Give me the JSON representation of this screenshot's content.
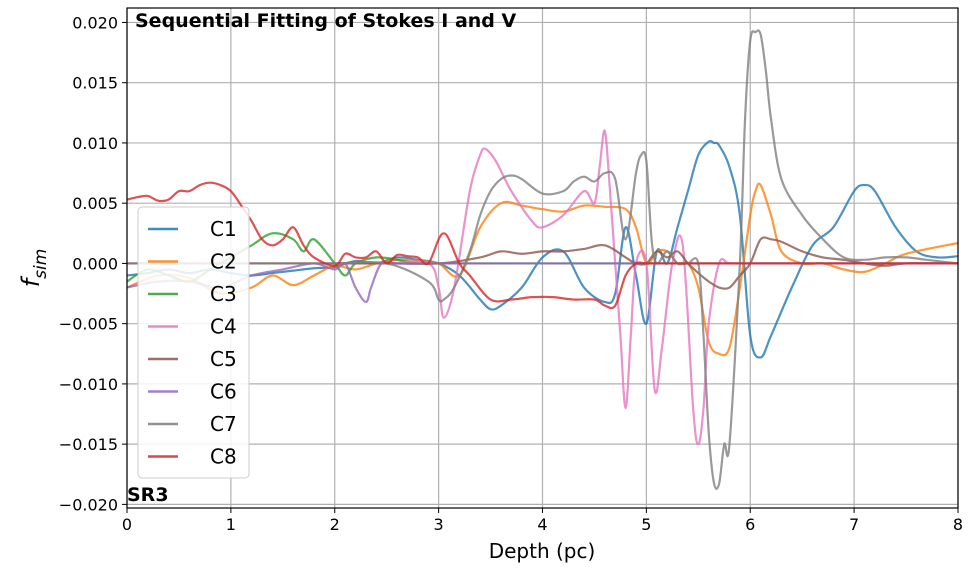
{
  "chart_data": {
    "type": "line",
    "title": "Sequential Fitting of Stokes I and V",
    "corner_label": "SR3",
    "xlabel": "Depth (pc)",
    "ylabel_base": "f",
    "ylabel_sub": "sim",
    "xlim": [
      0,
      8
    ],
    "ylim": [
      -0.0203,
      0.0212
    ],
    "xticks": [
      0,
      1,
      2,
      3,
      4,
      5,
      6,
      7,
      8
    ],
    "xtick_labels": [
      "0",
      "1",
      "2",
      "3",
      "4",
      "5",
      "6",
      "7",
      "8"
    ],
    "yticks": [
      -0.02,
      -0.015,
      -0.01,
      -0.005,
      0.0,
      0.005,
      0.01,
      0.015,
      0.02
    ],
    "ytick_labels": [
      "−0.020",
      "−0.015",
      "−0.010",
      "−0.005",
      "0.000",
      "0.005",
      "0.010",
      "0.015",
      "0.020"
    ],
    "grid": true,
    "legend_position": "left",
    "series": [
      {
        "name": "C1",
        "color": "#1f77b4",
        "x": [
          0,
          0.2,
          0.4,
          0.6,
          0.8,
          1.0,
          1.2,
          1.4,
          1.6,
          1.8,
          2.0,
          2.2,
          2.4,
          2.6,
          2.8,
          3.0,
          3.2,
          3.4,
          3.5,
          3.6,
          3.8,
          4.0,
          4.2,
          4.4,
          4.6,
          4.7,
          4.8,
          4.9,
          5.0,
          5.1,
          5.2,
          5.3,
          5.4,
          5.5,
          5.6,
          5.65,
          5.7,
          5.8,
          5.9,
          6.0,
          6.1,
          6.2,
          6.4,
          6.6,
          6.8,
          7.0,
          7.1,
          7.2,
          7.4,
          7.6,
          7.8,
          8.0
        ],
        "y": [
          -0.001,
          -0.0008,
          -0.0005,
          -0.0008,
          -0.0005,
          -0.0008,
          -0.001,
          -0.0008,
          -0.0006,
          -0.0004,
          -0.0003,
          0.0002,
          0.0,
          0.0005,
          0.0003,
          0.0,
          -0.001,
          -0.003,
          -0.0038,
          -0.0035,
          -0.002,
          0.0005,
          0.001,
          -0.002,
          -0.0032,
          -0.0025,
          0.003,
          -0.001,
          -0.005,
          0.001,
          0.0,
          0.003,
          0.006,
          0.009,
          0.0101,
          0.01,
          0.0098,
          0.008,
          0.004,
          -0.006,
          -0.0078,
          -0.006,
          -0.002,
          0.0015,
          0.003,
          0.006,
          0.0065,
          0.006,
          0.003,
          0.001,
          0.0005,
          0.0006
        ]
      },
      {
        "name": "C2",
        "color": "#ff7f0e",
        "x": [
          0,
          0.3,
          0.6,
          0.9,
          1.2,
          1.4,
          1.6,
          1.8,
          2.0,
          2.2,
          2.4,
          2.6,
          2.8,
          3.0,
          3.2,
          3.4,
          3.6,
          3.8,
          4.0,
          4.2,
          4.4,
          4.6,
          4.8,
          4.9,
          5.0,
          5.1,
          5.2,
          5.3,
          5.4,
          5.5,
          5.6,
          5.7,
          5.8,
          5.9,
          6.0,
          6.05,
          6.1,
          6.2,
          6.3,
          6.5,
          6.7,
          6.9,
          7.1,
          7.3,
          7.5,
          8.0
        ],
        "y": [
          -0.002,
          -0.001,
          -0.0012,
          -0.0025,
          -0.002,
          -0.001,
          -0.0018,
          -0.001,
          -0.0002,
          -0.0005,
          0.0,
          0.0003,
          0.0002,
          0.0,
          -0.001,
          0.003,
          0.005,
          0.0048,
          0.0045,
          0.0043,
          0.0048,
          0.0047,
          0.0045,
          0.003,
          0.0,
          0.001,
          0.001,
          0.0,
          0.0,
          -0.002,
          -0.0065,
          -0.0075,
          -0.007,
          -0.002,
          0.004,
          0.006,
          0.0065,
          0.004,
          0.001,
          0.0,
          0.0,
          -0.0005,
          -0.0007,
          0.0,
          0.0008,
          0.0017
        ]
      },
      {
        "name": "C3",
        "color": "#2ca02c",
        "x": [
          0,
          0.2,
          0.4,
          0.6,
          0.8,
          1.0,
          1.2,
          1.4,
          1.6,
          1.7,
          1.8,
          2.0,
          2.1,
          2.2,
          2.4,
          2.6,
          2.8,
          3.0,
          3.5,
          4.0,
          5.0,
          6.0,
          7.0,
          8.0
        ],
        "y": [
          -0.0015,
          -0.0005,
          -0.001,
          -0.0015,
          -0.0005,
          0.0005,
          0.0015,
          0.0025,
          0.002,
          0.001,
          0.002,
          0.0,
          -0.001,
          0.0,
          0.0005,
          0.0003,
          0.0,
          0.0,
          0.0,
          0.0,
          0.0,
          0.0,
          0.0,
          0.0
        ]
      },
      {
        "name": "C4",
        "color": "#e377c2",
        "x": [
          0,
          0.5,
          1.0,
          1.5,
          2.0,
          2.5,
          2.9,
          3.0,
          3.05,
          3.15,
          3.3,
          3.4,
          3.45,
          3.55,
          3.7,
          3.9,
          4.0,
          4.2,
          4.4,
          4.5,
          4.55,
          4.6,
          4.65,
          4.7,
          4.75,
          4.8,
          4.85,
          4.9,
          5.0,
          5.08,
          5.15,
          5.25,
          5.35,
          5.45,
          5.5,
          5.55,
          5.6,
          5.7,
          5.8,
          6.0,
          6.5,
          7.0,
          8.0
        ],
        "y": [
          0.0,
          0.0,
          0.0,
          0.0,
          0.0,
          0.0,
          0.0,
          -0.002,
          -0.0045,
          -0.002,
          0.006,
          0.009,
          0.0095,
          0.0085,
          0.006,
          0.0035,
          0.003,
          0.004,
          0.006,
          0.005,
          0.008,
          0.011,
          0.006,
          0.0,
          -0.006,
          -0.012,
          -0.006,
          0.0,
          0.0,
          -0.0105,
          -0.007,
          0.0,
          0.0015,
          -0.012,
          -0.015,
          -0.012,
          -0.005,
          0.0,
          0.0,
          0.0,
          0.0,
          0.0,
          0.0
        ]
      },
      {
        "name": "C5",
        "color": "#8c564b",
        "x": [
          0,
          0.5,
          1.0,
          1.5,
          2.0,
          2.5,
          3.0,
          3.4,
          3.6,
          3.8,
          4.0,
          4.2,
          4.4,
          4.6,
          4.8,
          4.9,
          5.0,
          5.1,
          5.2,
          5.3,
          5.4,
          5.5,
          5.6,
          5.7,
          5.8,
          5.9,
          6.0,
          6.1,
          6.2,
          6.3,
          6.5,
          6.7,
          6.9,
          7.1,
          7.3,
          7.5,
          8.0
        ],
        "y": [
          0.0,
          0.0,
          0.0,
          0.0,
          0.0,
          0.0,
          0.0,
          0.0005,
          0.001,
          0.0008,
          0.001,
          0.001,
          0.0012,
          0.0015,
          0.0005,
          0.0,
          0.0,
          0.001,
          0.0005,
          0.001,
          0.0,
          -0.0008,
          -0.0015,
          -0.002,
          -0.002,
          -0.001,
          0.0,
          0.002,
          0.002,
          0.0018,
          0.001,
          0.0005,
          0.0003,
          0.0,
          -0.0002,
          0.0,
          0.0
        ]
      },
      {
        "name": "C6",
        "color": "#9467bd",
        "x": [
          0,
          0.3,
          0.6,
          0.9,
          1.2,
          1.5,
          1.8,
          2.0,
          2.1,
          2.2,
          2.3,
          2.35,
          2.45,
          2.6,
          3.0,
          4.0,
          5.0,
          6.0,
          7.0,
          8.0
        ],
        "y": [
          -0.002,
          -0.0015,
          -0.0015,
          -0.002,
          -0.001,
          -0.0005,
          0.0,
          -0.0005,
          0.0,
          -0.002,
          -0.0032,
          -0.002,
          0.0,
          0.0,
          0.0,
          0.0,
          0.0,
          0.0,
          0.0,
          0.0
        ]
      },
      {
        "name": "C7",
        "color": "#7f7f7f",
        "x": [
          0,
          0.5,
          1.0,
          1.5,
          2.0,
          2.5,
          2.9,
          3.0,
          3.05,
          3.15,
          3.3,
          3.4,
          3.5,
          3.6,
          3.7,
          3.8,
          4.0,
          4.2,
          4.3,
          4.4,
          4.5,
          4.6,
          4.7,
          4.8,
          4.9,
          4.95,
          5.0,
          5.05,
          5.1,
          5.2,
          5.3,
          5.4,
          5.5,
          5.55,
          5.6,
          5.65,
          5.7,
          5.75,
          5.8,
          5.9,
          5.95,
          6.0,
          6.05,
          6.1,
          6.15,
          6.2,
          6.3,
          6.5,
          6.7,
          6.9,
          7.1,
          7.3,
          7.5,
          7.7,
          8.0
        ],
        "y": [
          0.0,
          0.0,
          0.0,
          0.0,
          0.0,
          0.0,
          -0.0015,
          -0.003,
          -0.003,
          -0.002,
          0.001,
          0.004,
          0.006,
          0.007,
          0.0073,
          0.007,
          0.0058,
          0.006,
          0.0068,
          0.0072,
          0.0068,
          0.0075,
          0.007,
          0.002,
          0.0075,
          0.009,
          0.0085,
          0.002,
          0.0,
          0.001,
          0.0,
          0.0,
          0.0,
          -0.006,
          -0.014,
          -0.0182,
          -0.0183,
          -0.015,
          -0.015,
          0.0,
          0.012,
          0.0185,
          0.0192,
          0.019,
          0.016,
          0.012,
          0.007,
          0.004,
          0.002,
          0.0005,
          0.0003,
          0.0005,
          0.0005,
          0.0003,
          0.0
        ]
      },
      {
        "name": "C8",
        "color": "#d62728",
        "x": [
          0,
          0.1,
          0.2,
          0.3,
          0.4,
          0.5,
          0.6,
          0.7,
          0.8,
          0.9,
          1.0,
          1.1,
          1.2,
          1.3,
          1.4,
          1.5,
          1.6,
          1.7,
          1.8,
          2.0,
          2.1,
          2.2,
          2.3,
          2.4,
          2.5,
          2.6,
          2.7,
          2.8,
          2.9,
          3.0,
          3.05,
          3.1,
          3.2,
          3.3,
          3.5,
          3.7,
          3.9,
          4.1,
          4.3,
          4.5,
          4.6,
          4.7,
          4.8,
          4.9,
          5.0,
          5.2,
          5.4,
          5.6,
          6.0,
          7.0,
          8.0
        ],
        "y": [
          0.0053,
          0.0055,
          0.0056,
          0.0052,
          0.0053,
          0.006,
          0.006,
          0.0065,
          0.0067,
          0.0065,
          0.006,
          0.0048,
          0.0035,
          0.002,
          0.0015,
          0.002,
          0.003,
          0.0015,
          0.0005,
          -0.0002,
          0.0008,
          0.0005,
          0.0005,
          0.001,
          0.0,
          0.0007,
          0.0006,
          0.0005,
          0.0,
          0.002,
          0.0025,
          0.002,
          0.0,
          -0.001,
          -0.003,
          -0.003,
          -0.0028,
          -0.0028,
          -0.003,
          -0.003,
          -0.0035,
          -0.0035,
          -0.001,
          0.0,
          0.0,
          0.0,
          0.0,
          0.0,
          0.0,
          0.0,
          0.0
        ]
      }
    ]
  }
}
